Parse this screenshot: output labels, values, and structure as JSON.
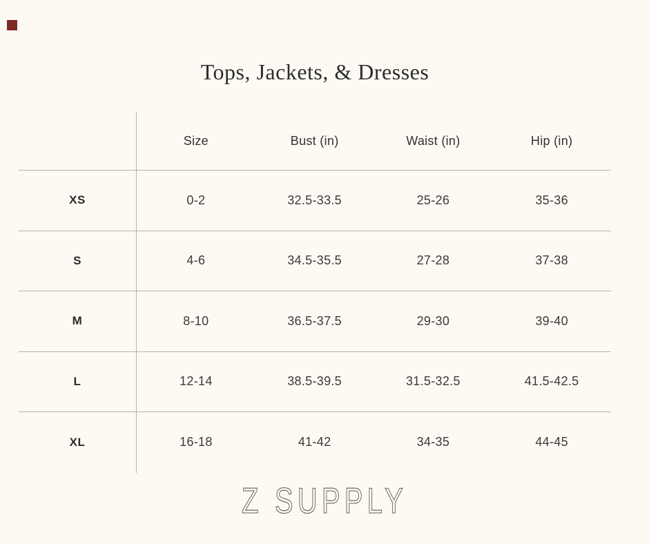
{
  "title": "Tops, Jackets, & Dresses",
  "table": {
    "columns": [
      "Size",
      "Bust (in)",
      "Waist (in)",
      "Hip (in)"
    ],
    "rows": [
      {
        "label": "XS",
        "size": "0-2",
        "bust": "32.5-33.5",
        "waist": "25-26",
        "hip": "35-36"
      },
      {
        "label": "S",
        "size": "4-6",
        "bust": "34.5-35.5",
        "waist": "27-28",
        "hip": "37-38"
      },
      {
        "label": "M",
        "size": "8-10",
        "bust": "36.5-37.5",
        "waist": "29-30",
        "hip": "39-40"
      },
      {
        "label": "L",
        "size": "12-14",
        "bust": "38.5-39.5",
        "waist": "31.5-32.5",
        "hip": "41.5-42.5"
      },
      {
        "label": "XL",
        "size": "16-18",
        "bust": "41-42",
        "waist": "34-35",
        "hip": "44-45"
      }
    ]
  },
  "footer": {
    "logo_text": "Z SUPPLY"
  },
  "colors": {
    "background": "#fdfaf4",
    "text": "#3b3a38",
    "line": "#b5b2ae",
    "logo": "#5b5853",
    "marker": "#7b2a24"
  }
}
